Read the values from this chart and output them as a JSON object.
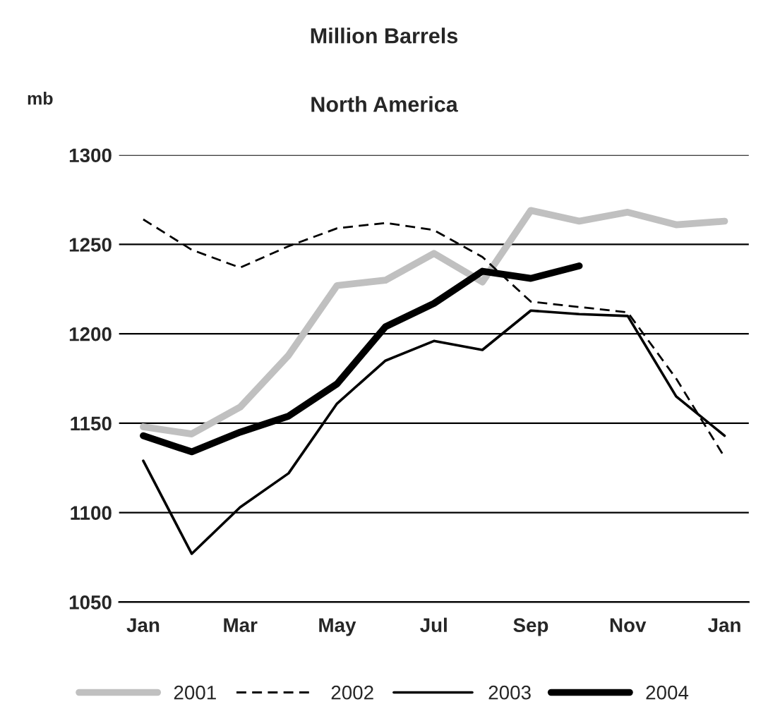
{
  "chart_data": {
    "type": "line",
    "title": "Million Barrels",
    "subtitle": "North America",
    "ylabel": "mb",
    "categories": [
      "Jan",
      null,
      "Mar",
      null,
      "May",
      null,
      "Jul",
      null,
      "Sep",
      null,
      "Nov",
      null,
      "Jan"
    ],
    "series": [
      {
        "name": "2001",
        "color": "#c0c0c0",
        "line_style": "solid",
        "values": [
          1148,
          1144,
          1159,
          1188,
          1227,
          1230,
          1245,
          1229,
          1269,
          1263,
          1268,
          1261,
          1263
        ]
      },
      {
        "name": "2002",
        "color": "#000000",
        "line_style": "dashed",
        "values": [
          1264,
          1247,
          1237,
          1249,
          1259,
          1262,
          1258,
          1243,
          1218,
          1215,
          1212,
          1175,
          1131
        ]
      },
      {
        "name": "2003",
        "color": "#000000",
        "line_style": "solid",
        "values": [
          1129,
          1077,
          1103,
          1122,
          1161,
          1185,
          1196,
          1191,
          1213,
          1211,
          1210,
          1165,
          1143
        ]
      },
      {
        "name": "2004",
        "color": "#000000",
        "line_style": "solid",
        "values": [
          1143,
          1134,
          1145,
          1154,
          1172,
          1204,
          1217,
          1235,
          1231,
          1238,
          null,
          null,
          null
        ]
      }
    ],
    "ylim": [
      1050,
      1300
    ],
    "yticks": [
      1050,
      1100,
      1150,
      1200,
      1250,
      1300
    ],
    "grid": "y",
    "legend": "bottom",
    "marker": "none"
  }
}
